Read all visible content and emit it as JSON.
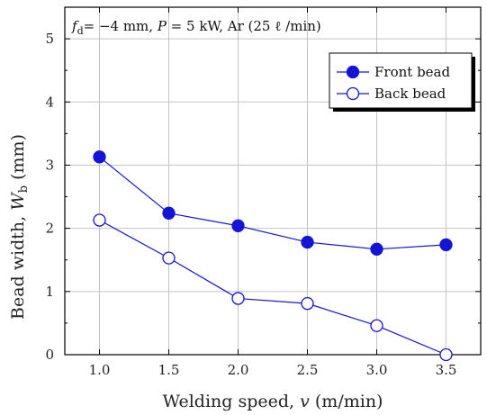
{
  "chart_data": {
    "type": "line",
    "condition_text": {
      "lead": "f",
      "lead_sub": "d",
      "rest": "= −4 mm, ",
      "p_symbol": "P",
      "p_rest": " = 5 kW, Ar (25 ℓ /min)"
    },
    "xlabel": {
      "text": "Welding speed, ",
      "symbol": "v",
      "unit": " (m/min)"
    },
    "ylabel": {
      "text": "Bead width, ",
      "symbol": "W",
      "sub": "b",
      "unit": " (mm)"
    },
    "x": [
      1.0,
      1.5,
      2.0,
      2.5,
      3.0,
      3.5
    ],
    "x_tick_labels": [
      "1.0",
      "1.5",
      "2.0",
      "2.5",
      "3.0",
      "3.5"
    ],
    "y_tick_labels": [
      "0",
      "1",
      "2",
      "3",
      "4",
      "5"
    ],
    "xlim": [
      0.75,
      3.75
    ],
    "ylim": [
      0,
      5.5
    ],
    "grid": true,
    "legend_position": "top-right",
    "series": [
      {
        "name": "Front bead",
        "marker": "filled-circle",
        "color": "#1414d6",
        "values": [
          3.13,
          2.24,
          2.04,
          1.78,
          1.67,
          1.74
        ]
      },
      {
        "name": "Back bead",
        "marker": "open-circle",
        "color": "#1414d6",
        "values": [
          2.13,
          1.53,
          0.89,
          0.81,
          0.46,
          0.0
        ]
      }
    ]
  }
}
